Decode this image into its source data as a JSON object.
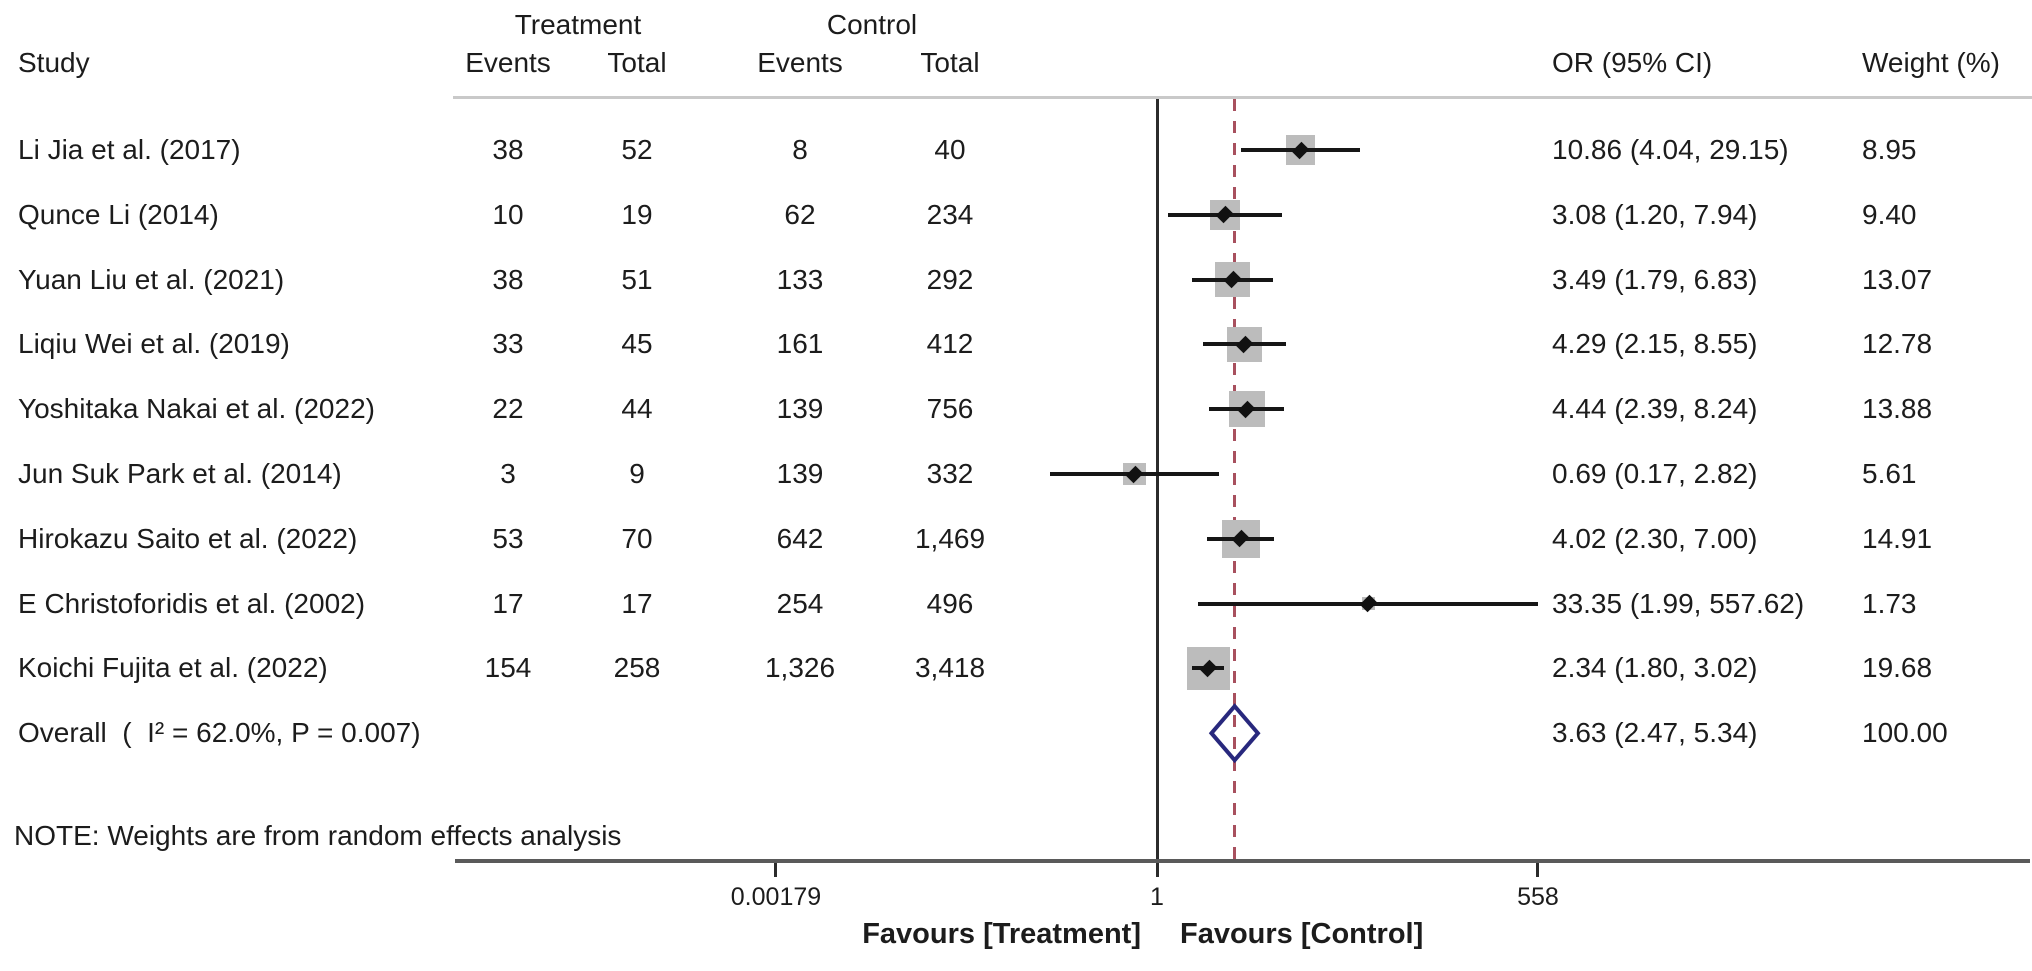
{
  "table": {
    "group1_header": "Treatment",
    "group2_header": "Control",
    "study_header": "Study",
    "events_header": "Events",
    "total_header": "Total",
    "or_header": "OR (95% CI)",
    "weight_header": "Weight (%)"
  },
  "colors": {
    "square": "#bcbcbc",
    "marker": "#111111",
    "ci_line": "#161616",
    "null_line": "#2b2b2b",
    "dashed_line": "#a8505e",
    "diamond_outline": "#28287d",
    "axis_line": "#5a5a5a",
    "header_rule": "#c9c9c9",
    "text": "#1c1c1c"
  },
  "chart_data": {
    "type": "forest-plot",
    "effect_measure": "OR",
    "scale": "log",
    "note": "NOTE: Weights are from random effects analysis",
    "axis": {
      "ticks": [
        {
          "value": 0.00179,
          "label": "0.00179"
        },
        {
          "value": 1,
          "label": "1"
        },
        {
          "value": 558,
          "label": "558"
        }
      ],
      "favours_left": "Favours [Treatment]",
      "favours_right": "Favours [Control]",
      "xlim": [
        0.00179,
        558
      ]
    },
    "studies": [
      {
        "name": "Li Jia et al. (2017)",
        "treatment_events": "38",
        "treatment_total": "52",
        "control_events": "8",
        "control_total": "40",
        "or": 10.86,
        "ci": [
          4.04,
          29.15
        ],
        "or_label": "10.86 (4.04, 29.15)",
        "weight": 8.95,
        "weight_label": "8.95"
      },
      {
        "name": "Qunce Li (2014)",
        "treatment_events": "10",
        "treatment_total": "19",
        "control_events": "62",
        "control_total": "234",
        "or": 3.08,
        "ci": [
          1.2,
          7.94
        ],
        "or_label": "3.08 (1.20, 7.94)",
        "weight": 9.4,
        "weight_label": "9.40"
      },
      {
        "name": "Yuan Liu et al. (2021)",
        "treatment_events": "38",
        "treatment_total": "51",
        "control_events": "133",
        "control_total": "292",
        "or": 3.49,
        "ci": [
          1.79,
          6.83
        ],
        "or_label": "3.49 (1.79, 6.83)",
        "weight": 13.07,
        "weight_label": "13.07"
      },
      {
        "name": "Liqiu Wei et al. (2019)",
        "treatment_events": "33",
        "treatment_total": "45",
        "control_events": "161",
        "control_total": "412",
        "or": 4.29,
        "ci": [
          2.15,
          8.55
        ],
        "or_label": "4.29 (2.15, 8.55)",
        "weight": 12.78,
        "weight_label": "12.78"
      },
      {
        "name": "Yoshitaka Nakai et al. (2022)",
        "treatment_events": "22",
        "treatment_total": "44",
        "control_events": "139",
        "control_total": "756",
        "or": 4.44,
        "ci": [
          2.39,
          8.24
        ],
        "or_label": "4.44 (2.39, 8.24)",
        "weight": 13.88,
        "weight_label": "13.88"
      },
      {
        "name": "Jun Suk Park et al. (2014)",
        "treatment_events": "3",
        "treatment_total": "9",
        "control_events": "139",
        "control_total": "332",
        "or": 0.69,
        "ci": [
          0.17,
          2.82
        ],
        "or_label": "0.69 (0.17, 2.82)",
        "weight": 5.61,
        "weight_label": "5.61"
      },
      {
        "name": "Hirokazu Saito et al. (2022)",
        "treatment_events": "53",
        "treatment_total": "70",
        "control_events": "642",
        "control_total": "1,469",
        "or": 4.02,
        "ci": [
          2.3,
          7.0
        ],
        "or_label": "4.02 (2.30, 7.00)",
        "weight": 14.91,
        "weight_label": "14.91"
      },
      {
        "name": "E Christoforidis et al. (2002)",
        "treatment_events": "17",
        "treatment_total": "17",
        "control_events": "254",
        "control_total": "496",
        "or": 33.35,
        "ci": [
          1.99,
          557.62
        ],
        "or_label": "33.35 (1.99, 557.62)",
        "weight": 1.73,
        "weight_label": "1.73"
      },
      {
        "name": "Koichi Fujita et al. (2022)",
        "treatment_events": "154",
        "treatment_total": "258",
        "control_events": "1,326",
        "control_total": "3,418",
        "or": 2.34,
        "ci": [
          1.8,
          3.02
        ],
        "or_label": "2.34 (1.80, 3.02)",
        "weight": 19.68,
        "weight_label": "19.68"
      }
    ],
    "overall": {
      "label": "Overall  (  I² = 62.0%, P = 0.007)",
      "or": 3.63,
      "ci": [
        2.47,
        5.34
      ],
      "or_label": "3.63 (2.47, 5.34)",
      "weight_label": "100.00",
      "heterogeneity_i2": "62.0%",
      "heterogeneity_p": "0.007"
    }
  }
}
